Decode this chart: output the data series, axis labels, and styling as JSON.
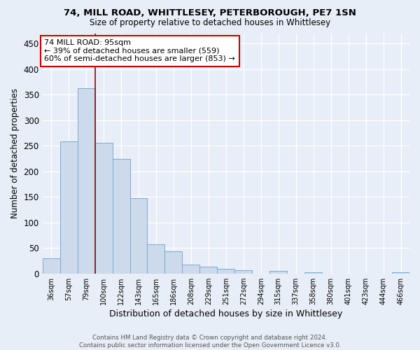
{
  "title1": "74, MILL ROAD, WHITTLESEY, PETERBOROUGH, PE7 1SN",
  "title2": "Size of property relative to detached houses in Whittlesey",
  "xlabel": "Distribution of detached houses by size in Whittlesey",
  "ylabel": "Number of detached properties",
  "footer1": "Contains HM Land Registry data © Crown copyright and database right 2024.",
  "footer2": "Contains public sector information licensed under the Open Government Licence v3.0.",
  "bar_labels": [
    "36sqm",
    "57sqm",
    "79sqm",
    "100sqm",
    "122sqm",
    "143sqm",
    "165sqm",
    "186sqm",
    "208sqm",
    "229sqm",
    "251sqm",
    "272sqm",
    "294sqm",
    "315sqm",
    "337sqm",
    "358sqm",
    "380sqm",
    "401sqm",
    "423sqm",
    "444sqm",
    "466sqm"
  ],
  "bar_values": [
    30,
    258,
    362,
    255,
    224,
    147,
    57,
    44,
    17,
    13,
    9,
    7,
    0,
    5,
    0,
    2,
    0,
    0,
    0,
    0,
    3
  ],
  "bar_color": "#ccdaec",
  "bar_edgecolor": "#7aaad0",
  "background_color": "#e8eef7",
  "grid_color": "#ffffff",
  "vline_x": 2.5,
  "vline_color": "#990000",
  "annotation_line1": "74 MILL ROAD: 95sqm",
  "annotation_line2": "← 39% of detached houses are smaller (559)",
  "annotation_line3": "60% of semi-detached houses are larger (853) →",
  "annotation_box_color": "#ffffff",
  "annotation_box_edgecolor": "#cc0000",
  "ylim": [
    0,
    470
  ],
  "yticks": [
    0,
    50,
    100,
    150,
    200,
    250,
    300,
    350,
    400,
    450
  ]
}
